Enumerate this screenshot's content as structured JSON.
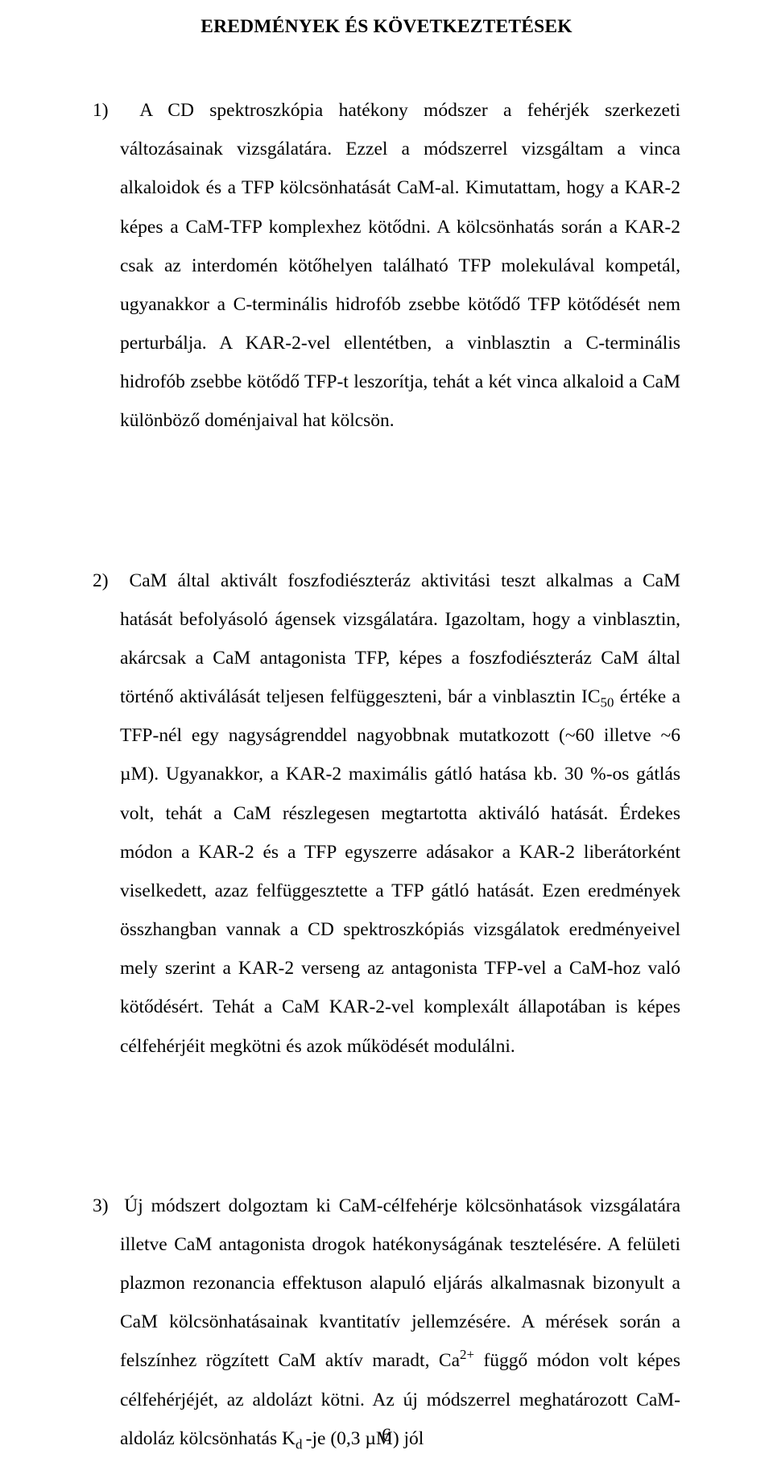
{
  "title": "EREDMÉNYEK ÉS KÖVETKEZTETÉSEK",
  "para1": {
    "num": "1)",
    "lead": "A CD spektroszkópia hatékony módszer a fehérjék szerkezeti változásainak vizsgálatára. Ezzel a módszerrel vizsgáltam a vinca alkaloidok és a TFP kölcsönhatását CaM-al. Kimutattam, hogy a KAR-2 képes a CaM-TFP komplexhez kötődni. A kölcsönhatás során a KAR-2 csak az interdomén kötőhelyen található TFP molekulával kompetál, ugyanakkor a C-terminális hidrofób zsebbe kötődő TFP kötődését nem perturbálja. A KAR-2-vel ellentétben, a vinblasztin a C-terminális hidrofób zsebbe kötődő TFP-t leszorítja, tehát a két vinca alkaloid a CaM különböző doménjaival hat kölcsön."
  },
  "para2": {
    "num": "2)",
    "part_a": "CaM által aktivált foszfodiészteráz aktivitási teszt alkalmas a CaM hatását befolyásoló ágensek vizsgálatára. Igazoltam, hogy a vinblasztin, akárcsak a CaM antagonista TFP, képes a foszfodiészteráz CaM által történő aktiválását teljesen felfüggeszteni, bár a vinblasztin IC",
    "sub1": "50",
    "part_b": " értéke a TFP-nél egy nagyságrenddel nagyobbnak mutatkozott (~60 illetve ~6 µM). Ugyanakkor, a KAR-2 maximális gátló hatása kb. 30 %-os gátlás volt, tehát a CaM részlegesen megtartotta aktiváló hatását. Érdekes módon a KAR-2 és a TFP egyszerre adásakor a KAR-2 liberátorként viselkedett, azaz felfüggesztette a TFP gátló hatását. Ezen eredmények összhangban vannak a CD spektroszkópiás vizsgálatok eredményeivel mely szerint a KAR-2 verseng az antagonista TFP-vel a CaM-hoz való kötődésért. Tehát a CaM KAR-2-vel komplexált állapotában is képes célfehérjéit megkötni és azok működését modulálni."
  },
  "para3": {
    "num": "3)",
    "part_a": "Új módszert dolgoztam ki CaM-célfehérje kölcsönhatások vizsgálatára illetve CaM antagonista drogok hatékonyságának tesztelésére. A felületi plazmon rezonancia effektuson alapuló eljárás alkalmasnak bizonyult a CaM kölcsönhatásainak kvantitatív jellemzésére. A mérések során a felszínhez rögzített CaM aktív maradt, Ca",
    "sup1": "2+",
    "part_b": " függő módon volt képes célfehérjéjét, az aldolázt kötni. Az új módszerrel meghatározott CaM-aldoláz kölcsönhatás K",
    "sub1": "d ",
    "part_c": "-je (0,3 µM) jól"
  },
  "page_number": "6"
}
